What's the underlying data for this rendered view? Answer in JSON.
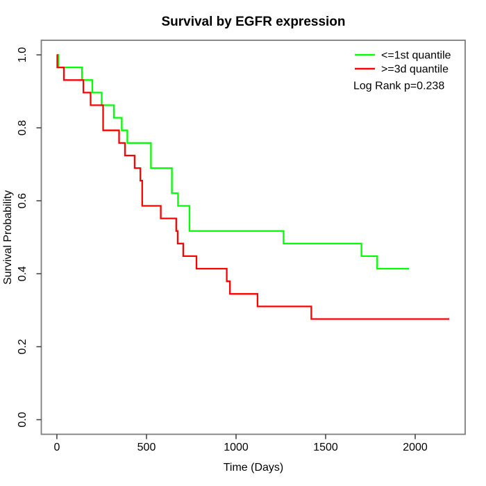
{
  "chart_data": {
    "type": "line",
    "variant": "kaplan-meier-step",
    "title": "Survival by EGFR expression",
    "xlabel": "Time (Days)",
    "ylabel": "Survival Probability",
    "grid": false,
    "x_axis": {
      "min": 0,
      "max": 2200,
      "ticks": [
        0,
        500,
        1000,
        1500,
        2000
      ],
      "tick_labels": [
        "0",
        "500",
        "1000",
        "1500",
        "2000"
      ]
    },
    "y_axis": {
      "min": 0.0,
      "max": 1.0,
      "ticks": [
        0.0,
        0.2,
        0.4,
        0.6,
        0.8,
        1.0
      ],
      "tick_labels": [
        "0.0",
        "0.2",
        "0.4",
        "0.6",
        "0.8",
        "1.0"
      ]
    },
    "legend": {
      "position": "top-right",
      "entries": [
        {
          "label": "<=1st quantile",
          "color": "#00ff00"
        },
        {
          "label": ">=3d quantile",
          "color": "#ff0000"
        }
      ]
    },
    "annotation": "Log Rank p=0.238",
    "series": [
      {
        "name": "<=1st quantile",
        "key": "le-1st-quantile",
        "color": "#00ff00",
        "end_time": 1965,
        "steps": [
          [
            0,
            1.0
          ],
          [
            8,
            0.9655
          ],
          [
            140,
            0.931
          ],
          [
            198,
            0.8966
          ],
          [
            250,
            0.8621
          ],
          [
            318,
            0.8276
          ],
          [
            362,
            0.7931
          ],
          [
            393,
            0.7586
          ],
          [
            525,
            0.6897
          ],
          [
            642,
            0.6207
          ],
          [
            676,
            0.5862
          ],
          [
            740,
            0.5172
          ],
          [
            1265,
            0.4828
          ],
          [
            1700,
            0.4483
          ],
          [
            1788,
            0.4138
          ]
        ]
      },
      {
        "name": ">=3d quantile",
        "key": "ge-3d-quantile",
        "color": "#ff0000",
        "end_time": 2190,
        "steps": [
          [
            0,
            1.0
          ],
          [
            2,
            0.9655
          ],
          [
            39,
            0.931
          ],
          [
            148,
            0.8966
          ],
          [
            188,
            0.8621
          ],
          [
            258,
            0.7931
          ],
          [
            347,
            0.7586
          ],
          [
            380,
            0.7241
          ],
          [
            434,
            0.6897
          ],
          [
            466,
            0.6552
          ],
          [
            476,
            0.5862
          ],
          [
            580,
            0.5517
          ],
          [
            666,
            0.5172
          ],
          [
            674,
            0.4828
          ],
          [
            705,
            0.4483
          ],
          [
            779,
            0.4138
          ],
          [
            948,
            0.3793
          ],
          [
            966,
            0.3448
          ],
          [
            1120,
            0.3103
          ],
          [
            1420,
            0.2759
          ]
        ]
      }
    ]
  }
}
